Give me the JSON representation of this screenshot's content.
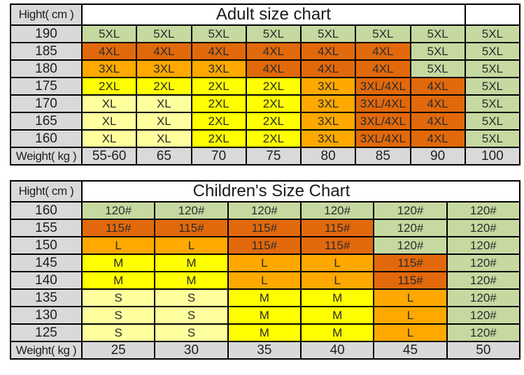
{
  "palette": {
    "green": "#c6d9a0",
    "dark_orange": "#e2690b",
    "orange": "#ffa800",
    "yellow": "#ffff00",
    "pale_yellow": "#ffff9e",
    "gray": "#d9d9d9",
    "border": "#000000",
    "title_text": "#1a1a1a"
  },
  "chart_data": [
    {
      "type": "table",
      "title": "Adult size chart",
      "corner_label": "Hight( cm )",
      "footer_label": "Weight( kg )",
      "weights": [
        "55-60",
        "65",
        "70",
        "75",
        "80",
        "85",
        "90",
        "100"
      ],
      "rows": [
        {
          "height": "190",
          "cells": [
            [
              "5XL",
              "green"
            ],
            [
              "5XL",
              "green"
            ],
            [
              "5XL",
              "green"
            ],
            [
              "5XL",
              "green"
            ],
            [
              "5XL",
              "green"
            ],
            [
              "5XL",
              "green"
            ],
            [
              "5XL",
              "green"
            ],
            [
              "5XL",
              "green"
            ]
          ]
        },
        {
          "height": "185",
          "cells": [
            [
              "4XL",
              "dark_orange"
            ],
            [
              "4XL",
              "dark_orange"
            ],
            [
              "4XL",
              "dark_orange"
            ],
            [
              "4XL",
              "dark_orange"
            ],
            [
              "4XL",
              "dark_orange"
            ],
            [
              "4XL",
              "dark_orange"
            ],
            [
              "5XL",
              "green"
            ],
            [
              "5XL",
              "green"
            ]
          ]
        },
        {
          "height": "180",
          "cells": [
            [
              "3XL",
              "orange"
            ],
            [
              "3XL",
              "orange"
            ],
            [
              "3XL",
              "orange"
            ],
            [
              "4XL",
              "dark_orange"
            ],
            [
              "4XL",
              "dark_orange"
            ],
            [
              "4XL",
              "dark_orange"
            ],
            [
              "5XL",
              "green"
            ],
            [
              "5XL",
              "green"
            ]
          ]
        },
        {
          "height": "175",
          "cells": [
            [
              "2XL",
              "yellow"
            ],
            [
              "2XL",
              "yellow"
            ],
            [
              "2XL",
              "yellow"
            ],
            [
              "2XL",
              "yellow"
            ],
            [
              "3XL",
              "orange"
            ],
            [
              "3XL/4XL",
              "dark_orange"
            ],
            [
              "4XL",
              "dark_orange"
            ],
            [
              "5XL",
              "green"
            ]
          ]
        },
        {
          "height": "170",
          "cells": [
            [
              "XL",
              "pale_yellow"
            ],
            [
              "XL",
              "pale_yellow"
            ],
            [
              "2XL",
              "yellow"
            ],
            [
              "2XL",
              "yellow"
            ],
            [
              "3XL",
              "orange"
            ],
            [
              "3XL/4XL",
              "dark_orange"
            ],
            [
              "4XL",
              "dark_orange"
            ],
            [
              "5XL",
              "green"
            ]
          ]
        },
        {
          "height": "165",
          "cells": [
            [
              "XL",
              "pale_yellow"
            ],
            [
              "XL",
              "pale_yellow"
            ],
            [
              "2XL",
              "yellow"
            ],
            [
              "2XL",
              "yellow"
            ],
            [
              "3XL",
              "orange"
            ],
            [
              "3XL/4XL",
              "dark_orange"
            ],
            [
              "4XL",
              "dark_orange"
            ],
            [
              "5XL",
              "green"
            ]
          ]
        },
        {
          "height": "160",
          "cells": [
            [
              "XL",
              "pale_yellow"
            ],
            [
              "XL",
              "pale_yellow"
            ],
            [
              "2XL",
              "yellow"
            ],
            [
              "2XL",
              "yellow"
            ],
            [
              "3XL",
              "orange"
            ],
            [
              "3XL/4XL",
              "dark_orange"
            ],
            [
              "4XL",
              "dark_orange"
            ],
            [
              "5XL",
              "green"
            ]
          ]
        }
      ]
    },
    {
      "type": "table",
      "title": "Children's Size Chart",
      "corner_label": "Hight( cm )",
      "footer_label": "Weight( kg )",
      "weights": [
        "25",
        "30",
        "35",
        "40",
        "45",
        "50"
      ],
      "rows": [
        {
          "height": "160",
          "cells": [
            [
              "120#",
              "green"
            ],
            [
              "120#",
              "green"
            ],
            [
              "120#",
              "green"
            ],
            [
              "120#",
              "green"
            ],
            [
              "120#",
              "green"
            ],
            [
              "120#",
              "green"
            ]
          ]
        },
        {
          "height": "155",
          "cells": [
            [
              "115#",
              "dark_orange"
            ],
            [
              "115#",
              "dark_orange"
            ],
            [
              "115#",
              "dark_orange"
            ],
            [
              "115#",
              "dark_orange"
            ],
            [
              "120#",
              "green"
            ],
            [
              "120#",
              "green"
            ]
          ]
        },
        {
          "height": "150",
          "cells": [
            [
              "L",
              "orange"
            ],
            [
              "L",
              "orange"
            ],
            [
              "115#",
              "dark_orange"
            ],
            [
              "115#",
              "dark_orange"
            ],
            [
              "120#",
              "green"
            ],
            [
              "120#",
              "green"
            ]
          ]
        },
        {
          "height": "145",
          "cells": [
            [
              "M",
              "yellow"
            ],
            [
              "M",
              "yellow"
            ],
            [
              "L",
              "orange"
            ],
            [
              "L",
              "orange"
            ],
            [
              "115#",
              "dark_orange"
            ],
            [
              "120#",
              "green"
            ]
          ]
        },
        {
          "height": "140",
          "cells": [
            [
              "M",
              "yellow"
            ],
            [
              "M",
              "yellow"
            ],
            [
              "L",
              "orange"
            ],
            [
              "L",
              "orange"
            ],
            [
              "115#",
              "dark_orange"
            ],
            [
              "120#",
              "green"
            ]
          ]
        },
        {
          "height": "135",
          "cells": [
            [
              "S",
              "pale_yellow"
            ],
            [
              "S",
              "pale_yellow"
            ],
            [
              "M",
              "yellow"
            ],
            [
              "M",
              "yellow"
            ],
            [
              "L",
              "orange"
            ],
            [
              "120#",
              "green"
            ]
          ]
        },
        {
          "height": "130",
          "cells": [
            [
              "S",
              "pale_yellow"
            ],
            [
              "S",
              "pale_yellow"
            ],
            [
              "M",
              "yellow"
            ],
            [
              "M",
              "yellow"
            ],
            [
              "L",
              "orange"
            ],
            [
              "120#",
              "green"
            ]
          ]
        },
        {
          "height": "125",
          "cells": [
            [
              "S",
              "pale_yellow"
            ],
            [
              "S",
              "pale_yellow"
            ],
            [
              "M",
              "yellow"
            ],
            [
              "M",
              "yellow"
            ],
            [
              "L",
              "orange"
            ],
            [
              "120#",
              "green"
            ]
          ]
        }
      ]
    }
  ]
}
